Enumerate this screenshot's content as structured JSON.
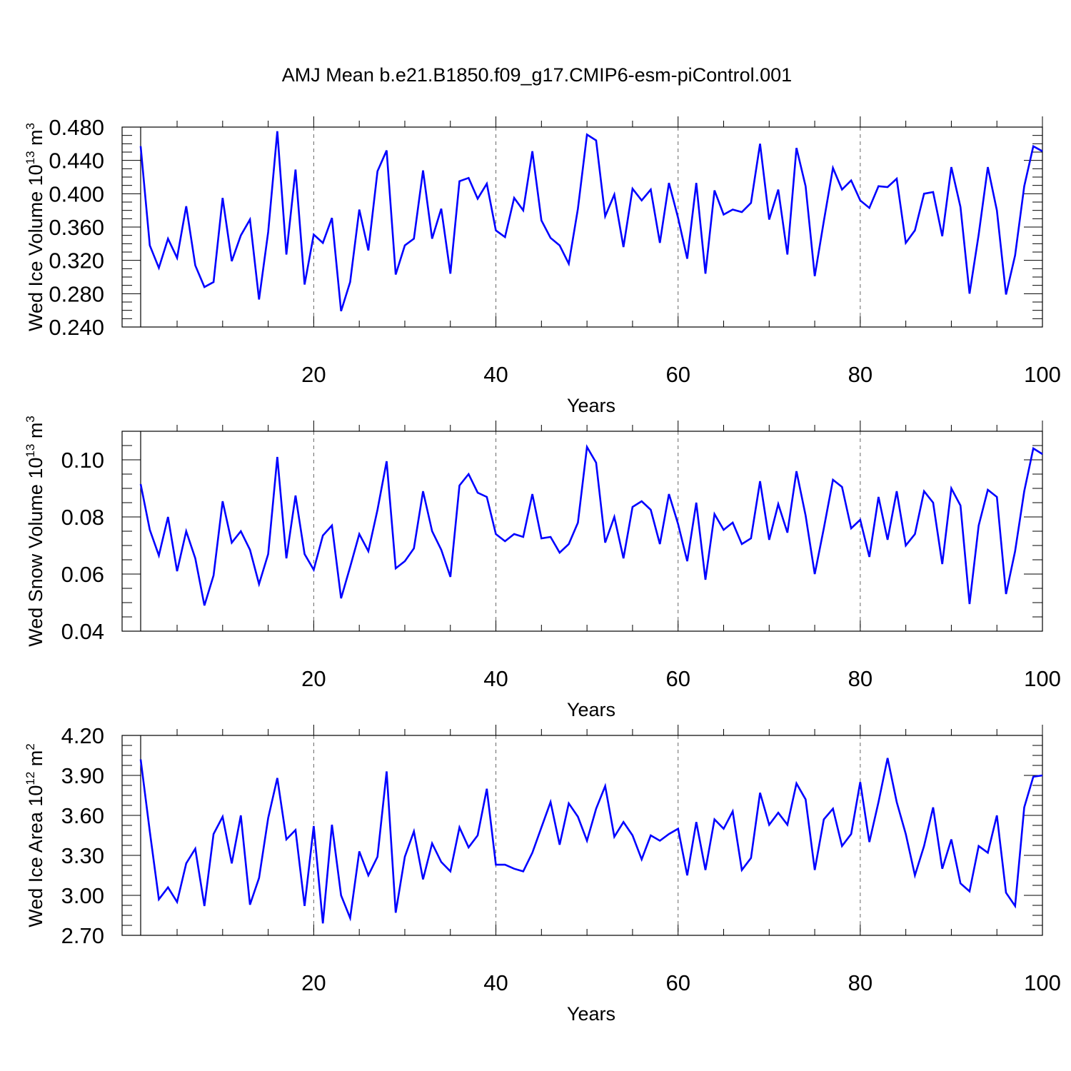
{
  "figure": {
    "title": "AMJ Mean b.e21.B1850.f09_g17.CMIP6-esm-piControl.001",
    "line_color": "#0000ff"
  },
  "chart_data": [
    {
      "type": "line",
      "ylabel": {
        "text": "Wed Ice Volume 10",
        "sup": "13",
        "unit": " m",
        "unit_sup": "3"
      },
      "xlabel": "Years",
      "xlim": [
        1,
        100
      ],
      "ylim": [
        0.24,
        0.48
      ],
      "xticks": [
        20,
        40,
        60,
        80,
        100
      ],
      "xtick_labels": [
        "20",
        "40",
        "60",
        "80",
        "100"
      ],
      "yticks": [
        0.24,
        0.28,
        0.32,
        0.36,
        0.4,
        0.44,
        0.48
      ],
      "ytick_labels": [
        "0.240",
        "0.280",
        "0.320",
        "0.360",
        "0.400",
        "0.440",
        "0.480"
      ],
      "grid": "vertical dashed at major x ticks",
      "series": [
        {
          "values": [
            0.457,
            0.338,
            0.311,
            0.346,
            0.323,
            0.385,
            0.314,
            0.288,
            0.294,
            0.395,
            0.319,
            0.35,
            0.369,
            0.273,
            0.354,
            0.475,
            0.327,
            0.429,
            0.291,
            0.351,
            0.341,
            0.371,
            0.259,
            0.294,
            0.381,
            0.332,
            0.427,
            0.452,
            0.303,
            0.338,
            0.346,
            0.428,
            0.346,
            0.382,
            0.304,
            0.415,
            0.419,
            0.394,
            0.412,
            0.356,
            0.348,
            0.395,
            0.38,
            0.451,
            0.368,
            0.347,
            0.338,
            0.316,
            0.382,
            0.471,
            0.464,
            0.373,
            0.399,
            0.336,
            0.406,
            0.392,
            0.405,
            0.341,
            0.413,
            0.371,
            0.322,
            0.413,
            0.304,
            0.404,
            0.375,
            0.381,
            0.378,
            0.389,
            0.46,
            0.369,
            0.405,
            0.327,
            0.455,
            0.409,
            0.301,
            0.367,
            0.431,
            0.405,
            0.416,
            0.392,
            0.383,
            0.409,
            0.408,
            0.418,
            0.341,
            0.356,
            0.4,
            0.402,
            0.349,
            0.432,
            0.384,
            0.28,
            0.351,
            0.432,
            0.38,
            0.279,
            0.326,
            0.409,
            0.457,
            0.451
          ]
        }
      ]
    },
    {
      "type": "line",
      "ylabel": {
        "text": "Wed Snow Volume 10",
        "sup": "13",
        "unit": " m",
        "unit_sup": "3"
      },
      "xlabel": "Years",
      "xlim": [
        1,
        100
      ],
      "ylim": [
        0.04,
        0.11
      ],
      "xticks": [
        20,
        40,
        60,
        80,
        100
      ],
      "xtick_labels": [
        "20",
        "40",
        "60",
        "80",
        "100"
      ],
      "yticks": [
        0.04,
        0.06,
        0.08,
        0.1
      ],
      "ytick_labels": [
        "0.04",
        "0.06",
        "0.08",
        "0.10"
      ],
      "grid": "vertical dashed at major x ticks",
      "series": [
        {
          "values": [
            0.0915,
            0.0755,
            0.0665,
            0.08,
            0.061,
            0.075,
            0.0655,
            0.049,
            0.0595,
            0.0855,
            0.071,
            0.075,
            0.0685,
            0.0565,
            0.067,
            0.101,
            0.0655,
            0.0875,
            0.067,
            0.0615,
            0.0735,
            0.077,
            0.0515,
            0.0625,
            0.074,
            0.068,
            0.0825,
            0.0995,
            0.062,
            0.0645,
            0.069,
            0.089,
            0.075,
            0.0685,
            0.059,
            0.091,
            0.095,
            0.0885,
            0.087,
            0.074,
            0.0715,
            0.074,
            0.073,
            0.088,
            0.0725,
            0.073,
            0.0675,
            0.0705,
            0.078,
            0.1045,
            0.099,
            0.071,
            0.08,
            0.0655,
            0.0835,
            0.0855,
            0.0825,
            0.0705,
            0.088,
            0.0775,
            0.0645,
            0.085,
            0.058,
            0.081,
            0.0755,
            0.078,
            0.0705,
            0.0725,
            0.0925,
            0.072,
            0.0845,
            0.0745,
            0.096,
            0.0805,
            0.06,
            0.076,
            0.093,
            0.0905,
            0.076,
            0.079,
            0.066,
            0.087,
            0.072,
            0.089,
            0.07,
            0.074,
            0.089,
            0.085,
            0.0635,
            0.09,
            0.084,
            0.0495,
            0.077,
            0.0895,
            0.087,
            0.053,
            0.068,
            0.089,
            0.104,
            0.102
          ]
        }
      ]
    },
    {
      "type": "line",
      "ylabel": {
        "text": "Wed Ice Area 10",
        "sup": "12",
        "unit": " m",
        "unit_sup": "2"
      },
      "xlabel": "Years",
      "xlim": [
        1,
        100
      ],
      "ylim": [
        2.7,
        4.2
      ],
      "xticks": [
        20,
        40,
        60,
        80,
        100
      ],
      "xtick_labels": [
        "20",
        "40",
        "60",
        "80",
        "100"
      ],
      "yticks": [
        2.7,
        3.0,
        3.3,
        3.6,
        3.9,
        4.2
      ],
      "ytick_labels": [
        "2.70",
        "3.00",
        "3.30",
        "3.60",
        "3.90",
        "4.20"
      ],
      "grid": "vertical dashed at major x ticks",
      "series": [
        {
          "values": [
            4.02,
            3.48,
            2.97,
            3.06,
            2.95,
            3.24,
            3.35,
            2.92,
            3.46,
            3.59,
            3.24,
            3.6,
            2.93,
            3.13,
            3.58,
            3.88,
            3.42,
            3.49,
            2.92,
            3.52,
            2.79,
            3.53,
            3.0,
            2.83,
            3.33,
            3.15,
            3.29,
            3.93,
            2.87,
            3.29,
            3.48,
            3.12,
            3.39,
            3.25,
            3.18,
            3.51,
            3.36,
            3.45,
            3.8,
            3.23,
            3.23,
            3.2,
            3.18,
            3.32,
            3.51,
            3.7,
            3.38,
            3.69,
            3.59,
            3.41,
            3.65,
            3.82,
            3.44,
            3.55,
            3.45,
            3.27,
            3.45,
            3.41,
            3.46,
            3.5,
            3.15,
            3.55,
            3.19,
            3.57,
            3.5,
            3.63,
            3.19,
            3.28,
            3.77,
            3.53,
            3.62,
            3.53,
            3.84,
            3.72,
            3.19,
            3.57,
            3.65,
            3.37,
            3.46,
            3.85,
            3.4,
            3.7,
            4.03,
            3.7,
            3.46,
            3.15,
            3.37,
            3.66,
            3.2,
            3.42,
            3.09,
            3.03,
            3.37,
            3.32,
            3.6,
            3.02,
            2.92,
            3.66,
            3.89,
            3.9
          ]
        }
      ]
    }
  ]
}
